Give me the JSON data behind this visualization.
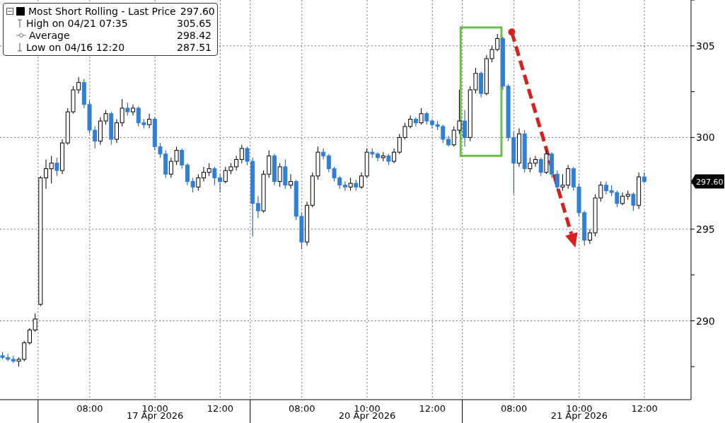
{
  "chart_data": {
    "type": "candlestick",
    "categories": [
      null,
      null,
      null,
      null,
      null,
      null,
      null,
      null,
      null,
      null,
      null,
      null,
      null,
      null,
      null,
      null,
      "08:00",
      null,
      null,
      null,
      null,
      null,
      null,
      null,
      null,
      null,
      null,
      null,
      "10:00",
      null,
      null,
      null,
      null,
      null,
      null,
      null,
      null,
      null,
      null,
      null,
      "12:00",
      null,
      null,
      null,
      null,
      null,
      null,
      null,
      null,
      null,
      null,
      null,
      null,
      null,
      null,
      "08:00",
      null,
      null,
      null,
      null,
      null,
      null,
      null,
      null,
      null,
      null,
      null,
      "10:00",
      null,
      null,
      null,
      null,
      null,
      null,
      null,
      null,
      null,
      null,
      null,
      "12:00",
      null,
      null,
      null,
      null,
      null,
      null,
      null,
      null,
      null,
      null,
      null,
      null,
      null,
      null,
      "08:00",
      null,
      null,
      null,
      null,
      null,
      null,
      null,
      null,
      null,
      null,
      null,
      "10:00",
      null,
      null,
      null,
      null,
      null,
      null,
      null,
      null,
      null,
      null,
      null,
      "12:00"
    ],
    "series": [
      {
        "name": "Most Short Rolling - Last Price",
        "ohlc": [
          [
            288.1,
            288.3,
            287.9,
            288.0
          ],
          [
            288.0,
            288.2,
            287.8,
            287.9
          ],
          [
            287.9,
            288.1,
            287.7,
            287.8
          ],
          [
            287.8,
            288.0,
            287.51,
            287.9
          ],
          [
            287.9,
            288.9,
            287.8,
            288.8
          ],
          [
            288.8,
            289.6,
            288.7,
            289.5
          ],
          [
            289.5,
            290.4,
            289.4,
            290.1
          ],
          [
            290.9,
            297.9,
            290.8,
            297.8
          ],
          [
            297.8,
            298.8,
            297.2,
            298.3
          ],
          [
            298.3,
            299.0,
            297.5,
            298.6
          ],
          [
            298.6,
            298.9,
            297.9,
            298.2
          ],
          [
            298.2,
            299.9,
            298.0,
            299.7
          ],
          [
            299.7,
            301.6,
            299.6,
            301.4
          ],
          [
            301.4,
            302.8,
            301.3,
            302.6
          ],
          [
            302.6,
            303.3,
            302.4,
            303.0
          ],
          [
            303.0,
            303.2,
            301.6,
            301.8
          ],
          [
            301.8,
            302.0,
            300.2,
            300.4
          ],
          [
            300.4,
            300.6,
            299.4,
            299.8
          ],
          [
            299.8,
            301.1,
            299.6,
            300.9
          ],
          [
            300.9,
            301.5,
            300.7,
            301.3
          ],
          [
            301.3,
            301.4,
            299.6,
            299.9
          ],
          [
            299.9,
            301.0,
            299.7,
            300.8
          ],
          [
            300.8,
            302.1,
            300.6,
            301.6
          ],
          [
            301.6,
            301.9,
            301.2,
            301.4
          ],
          [
            301.4,
            301.8,
            301.2,
            301.6
          ],
          [
            301.6,
            301.7,
            300.6,
            300.8
          ],
          [
            300.8,
            301.0,
            300.5,
            300.7
          ],
          [
            300.7,
            301.3,
            300.5,
            301.0
          ],
          [
            301.0,
            301.1,
            299.3,
            299.5
          ],
          [
            299.5,
            299.7,
            298.9,
            299.1
          ],
          [
            299.1,
            299.3,
            297.8,
            298.0
          ],
          [
            298.0,
            298.9,
            297.8,
            298.7
          ],
          [
            298.7,
            299.5,
            298.5,
            299.3
          ],
          [
            299.3,
            299.4,
            298.3,
            298.5
          ],
          [
            298.5,
            298.6,
            297.4,
            297.6
          ],
          [
            297.6,
            297.8,
            297.0,
            297.3
          ],
          [
            297.3,
            298.0,
            297.1,
            297.8
          ],
          [
            297.8,
            298.4,
            297.6,
            298.1
          ],
          [
            298.1,
            298.6,
            297.9,
            298.3
          ],
          [
            298.3,
            298.4,
            297.4,
            297.8
          ],
          [
            297.8,
            298.0,
            297.0,
            297.6
          ],
          [
            297.6,
            298.4,
            297.5,
            298.2
          ],
          [
            298.2,
            298.6,
            298.0,
            298.4
          ],
          [
            298.4,
            299.0,
            298.2,
            298.8
          ],
          [
            298.8,
            299.6,
            298.6,
            299.4
          ],
          [
            299.4,
            299.5,
            298.5,
            298.7
          ],
          [
            298.7,
            298.9,
            294.6,
            296.4
          ],
          [
            296.4,
            296.8,
            295.6,
            296.0
          ],
          [
            296.0,
            298.2,
            295.9,
            298.0
          ],
          [
            298.0,
            299.3,
            297.8,
            299.0
          ],
          [
            299.0,
            299.1,
            297.4,
            297.6
          ],
          [
            297.6,
            298.6,
            297.3,
            298.4
          ],
          [
            298.4,
            298.8,
            297.2,
            297.4
          ],
          [
            297.4,
            298.0,
            297.2,
            297.6
          ],
          [
            297.6,
            297.7,
            295.5,
            295.7
          ],
          [
            295.7,
            295.9,
            293.9,
            294.3
          ],
          [
            294.3,
            296.5,
            294.1,
            296.3
          ],
          [
            296.3,
            298.1,
            296.2,
            297.9
          ],
          [
            297.9,
            299.5,
            297.7,
            299.2
          ],
          [
            299.2,
            299.4,
            298.8,
            299.0
          ],
          [
            299.0,
            299.1,
            298.1,
            298.3
          ],
          [
            298.3,
            298.4,
            297.6,
            297.8
          ],
          [
            297.8,
            297.9,
            297.2,
            297.4
          ],
          [
            297.4,
            297.6,
            297.1,
            297.3
          ],
          [
            297.3,
            297.8,
            297.1,
            297.5
          ],
          [
            297.5,
            297.7,
            297.1,
            297.3
          ],
          [
            297.3,
            298.1,
            297.2,
            297.9
          ],
          [
            297.9,
            299.4,
            297.8,
            299.2
          ],
          [
            299.2,
            299.4,
            298.9,
            299.1
          ],
          [
            299.1,
            299.2,
            298.7,
            298.9
          ],
          [
            298.9,
            299.2,
            298.7,
            299.0
          ],
          [
            299.0,
            299.1,
            298.5,
            298.7
          ],
          [
            298.7,
            299.4,
            298.6,
            299.2
          ],
          [
            299.2,
            300.2,
            299.1,
            300.0
          ],
          [
            300.0,
            300.8,
            299.9,
            300.6
          ],
          [
            300.6,
            301.2,
            300.5,
            301.0
          ],
          [
            301.0,
            301.1,
            300.6,
            300.8
          ],
          [
            300.8,
            301.6,
            300.7,
            301.3
          ],
          [
            301.3,
            301.4,
            300.7,
            300.9
          ],
          [
            300.9,
            301.0,
            300.5,
            300.7
          ],
          [
            300.7,
            300.9,
            300.4,
            300.6
          ],
          [
            300.6,
            300.7,
            299.7,
            299.9
          ],
          [
            299.9,
            300.1,
            299.5,
            299.6
          ],
          [
            299.6,
            300.6,
            299.5,
            300.4
          ],
          [
            300.4,
            302.6,
            300.2,
            300.9
          ],
          [
            300.9,
            301.5,
            299.5,
            300.0
          ],
          [
            300.0,
            302.8,
            299.8,
            302.6
          ],
          [
            302.6,
            303.8,
            302.4,
            303.5
          ],
          [
            303.5,
            303.6,
            302.2,
            302.4
          ],
          [
            302.4,
            304.5,
            302.3,
            304.3
          ],
          [
            304.3,
            305.0,
            304.1,
            304.8
          ],
          [
            304.8,
            305.65,
            304.7,
            305.4
          ],
          [
            305.4,
            305.5,
            302.6,
            302.8
          ],
          [
            302.8,
            302.9,
            299.8,
            300.0
          ],
          [
            300.0,
            300.3,
            296.9,
            298.6
          ],
          [
            298.6,
            300.5,
            298.4,
            300.2
          ],
          [
            300.2,
            300.4,
            298.1,
            298.3
          ],
          [
            298.3,
            298.9,
            298.1,
            298.6
          ],
          [
            298.6,
            299.0,
            298.4,
            298.8
          ],
          [
            298.8,
            298.9,
            297.9,
            298.1
          ],
          [
            298.1,
            299.3,
            298.0,
            299.1
          ],
          [
            299.1,
            299.2,
            297.8,
            298.0
          ],
          [
            298.0,
            298.2,
            297.1,
            297.3
          ],
          [
            297.3,
            298.0,
            297.1,
            297.4
          ],
          [
            297.4,
            298.5,
            297.2,
            298.3
          ],
          [
            298.3,
            298.4,
            297.1,
            297.3
          ],
          [
            297.3,
            297.5,
            295.7,
            295.9
          ],
          [
            295.9,
            296.0,
            294.1,
            294.4
          ],
          [
            294.4,
            295.0,
            294.2,
            294.8
          ],
          [
            294.8,
            296.9,
            294.6,
            296.7
          ],
          [
            296.7,
            297.6,
            296.5,
            297.4
          ],
          [
            297.4,
            297.6,
            296.9,
            297.1
          ],
          [
            297.1,
            297.4,
            296.8,
            297.0
          ],
          [
            297.0,
            297.1,
            296.2,
            296.4
          ],
          [
            296.4,
            297.0,
            296.3,
            296.8
          ],
          [
            296.8,
            297.1,
            296.6,
            296.9
          ],
          [
            296.9,
            297.0,
            296.0,
            296.3
          ],
          [
            296.3,
            298.1,
            296.1,
            297.85
          ],
          [
            297.85,
            298.1,
            297.5,
            297.6
          ]
        ],
        "colors": [
          "#2f7fd6",
          "#2f7fd6",
          "#2f7fd6",
          "#ffffff",
          "#ffffff",
          "#ffffff",
          "#ffffff",
          "#ffffff",
          "#ffffff",
          "#ffffff",
          "#2f7fd6",
          "#ffffff",
          "#ffffff",
          "#ffffff",
          "#ffffff",
          "#2f7fd6",
          "#2f7fd6",
          "#2f7fd6",
          "#ffffff",
          "#ffffff",
          "#2f7fd6",
          "#ffffff",
          "#ffffff",
          "#2f7fd6",
          "#ffffff",
          "#2f7fd6",
          "#2f7fd6",
          "#ffffff",
          "#2f7fd6",
          "#2f7fd6",
          "#2f7fd6",
          "#ffffff",
          "#ffffff",
          "#2f7fd6",
          "#2f7fd6",
          "#2f7fd6",
          "#ffffff",
          "#ffffff",
          "#ffffff",
          "#2f7fd6",
          "#2f7fd6",
          "#ffffff",
          "#ffffff",
          "#ffffff",
          "#ffffff",
          "#2f7fd6",
          "#2f7fd6",
          "#2f7fd6",
          "#ffffff",
          "#ffffff",
          "#2f7fd6",
          "#ffffff",
          "#2f7fd6",
          "#ffffff",
          "#2f7fd6",
          "#2f7fd6",
          "#ffffff",
          "#ffffff",
          "#ffffff",
          "#2f7fd6",
          "#2f7fd6",
          "#2f7fd6",
          "#2f7fd6",
          "#2f7fd6",
          "#ffffff",
          "#2f7fd6",
          "#ffffff",
          "#ffffff",
          "#2f7fd6",
          "#2f7fd6",
          "#ffffff",
          "#2f7fd6",
          "#ffffff",
          "#ffffff",
          "#ffffff",
          "#ffffff",
          "#2f7fd6",
          "#ffffff",
          "#2f7fd6",
          "#2f7fd6",
          "#2f7fd6",
          "#2f7fd6",
          "#2f7fd6",
          "#ffffff",
          "#ffffff",
          "#2f7fd6",
          "#ffffff",
          "#ffffff",
          "#2f7fd6",
          "#ffffff",
          "#ffffff",
          "#ffffff",
          "#2f7fd6",
          "#2f7fd6",
          "#2f7fd6",
          "#ffffff",
          "#2f7fd6",
          "#ffffff",
          "#ffffff",
          "#2f7fd6",
          "#ffffff",
          "#2f7fd6",
          "#2f7fd6",
          "#ffffff",
          "#ffffff",
          "#2f7fd6",
          "#2f7fd6",
          "#2f7fd6",
          "#ffffff",
          "#ffffff",
          "#ffffff",
          "#2f7fd6",
          "#2f7fd6",
          "#2f7fd6",
          "#ffffff",
          "#ffffff",
          "#2f7fd6",
          "#ffffff",
          "#2f7fd6"
        ]
      }
    ],
    "ylim": [
      285.7,
      307.5
    ],
    "yticks": [
      290,
      295,
      300,
      305
    ],
    "grid": true,
    "legend": "top left",
    "annotations": [
      "297.60",
      "High on 04/21 07:35",
      "305.65",
      "Average",
      "298.42",
      "Low on 04/16 12:20",
      "287.51",
      "17 Apr 2026",
      "20 Apr 2026",
      "21 Apr 2026",
      "297.60"
    ]
  }
}
